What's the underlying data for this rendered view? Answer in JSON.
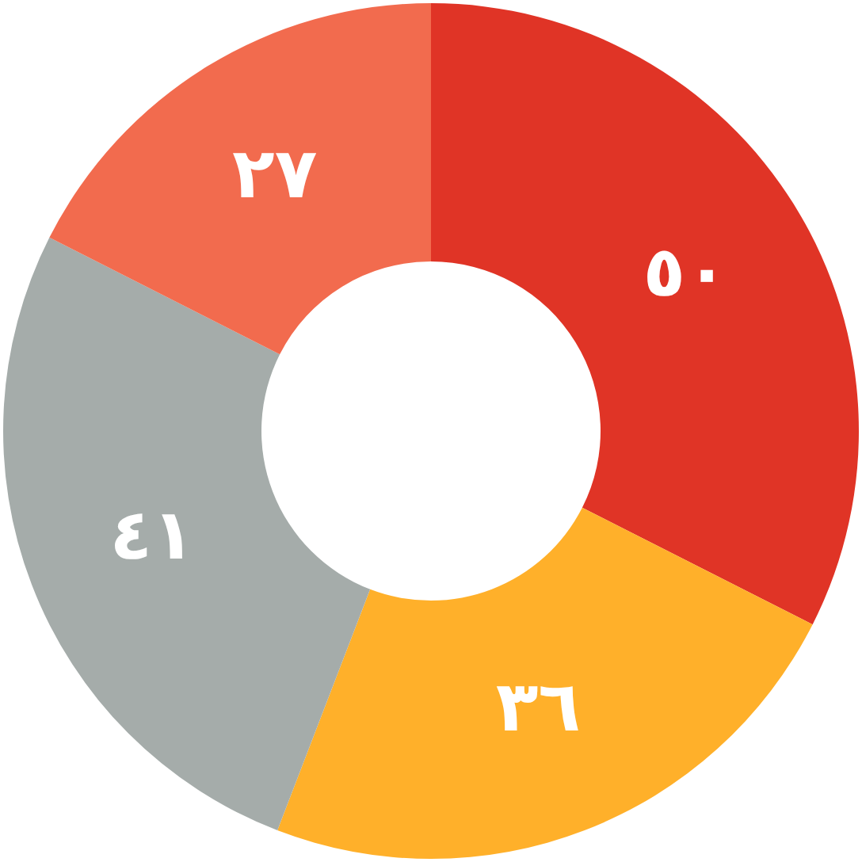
{
  "chart_data": {
    "type": "donut",
    "categories": [
      null,
      null,
      null,
      null
    ],
    "values": [
      50,
      36,
      41,
      27
    ],
    "colors": [
      "#e03426",
      "#ffb02a",
      "#a5acaa",
      "#f26b4e"
    ],
    "value_labels": [
      "٥٠",
      "٣٦",
      "٤١",
      "٢٧"
    ]
  }
}
